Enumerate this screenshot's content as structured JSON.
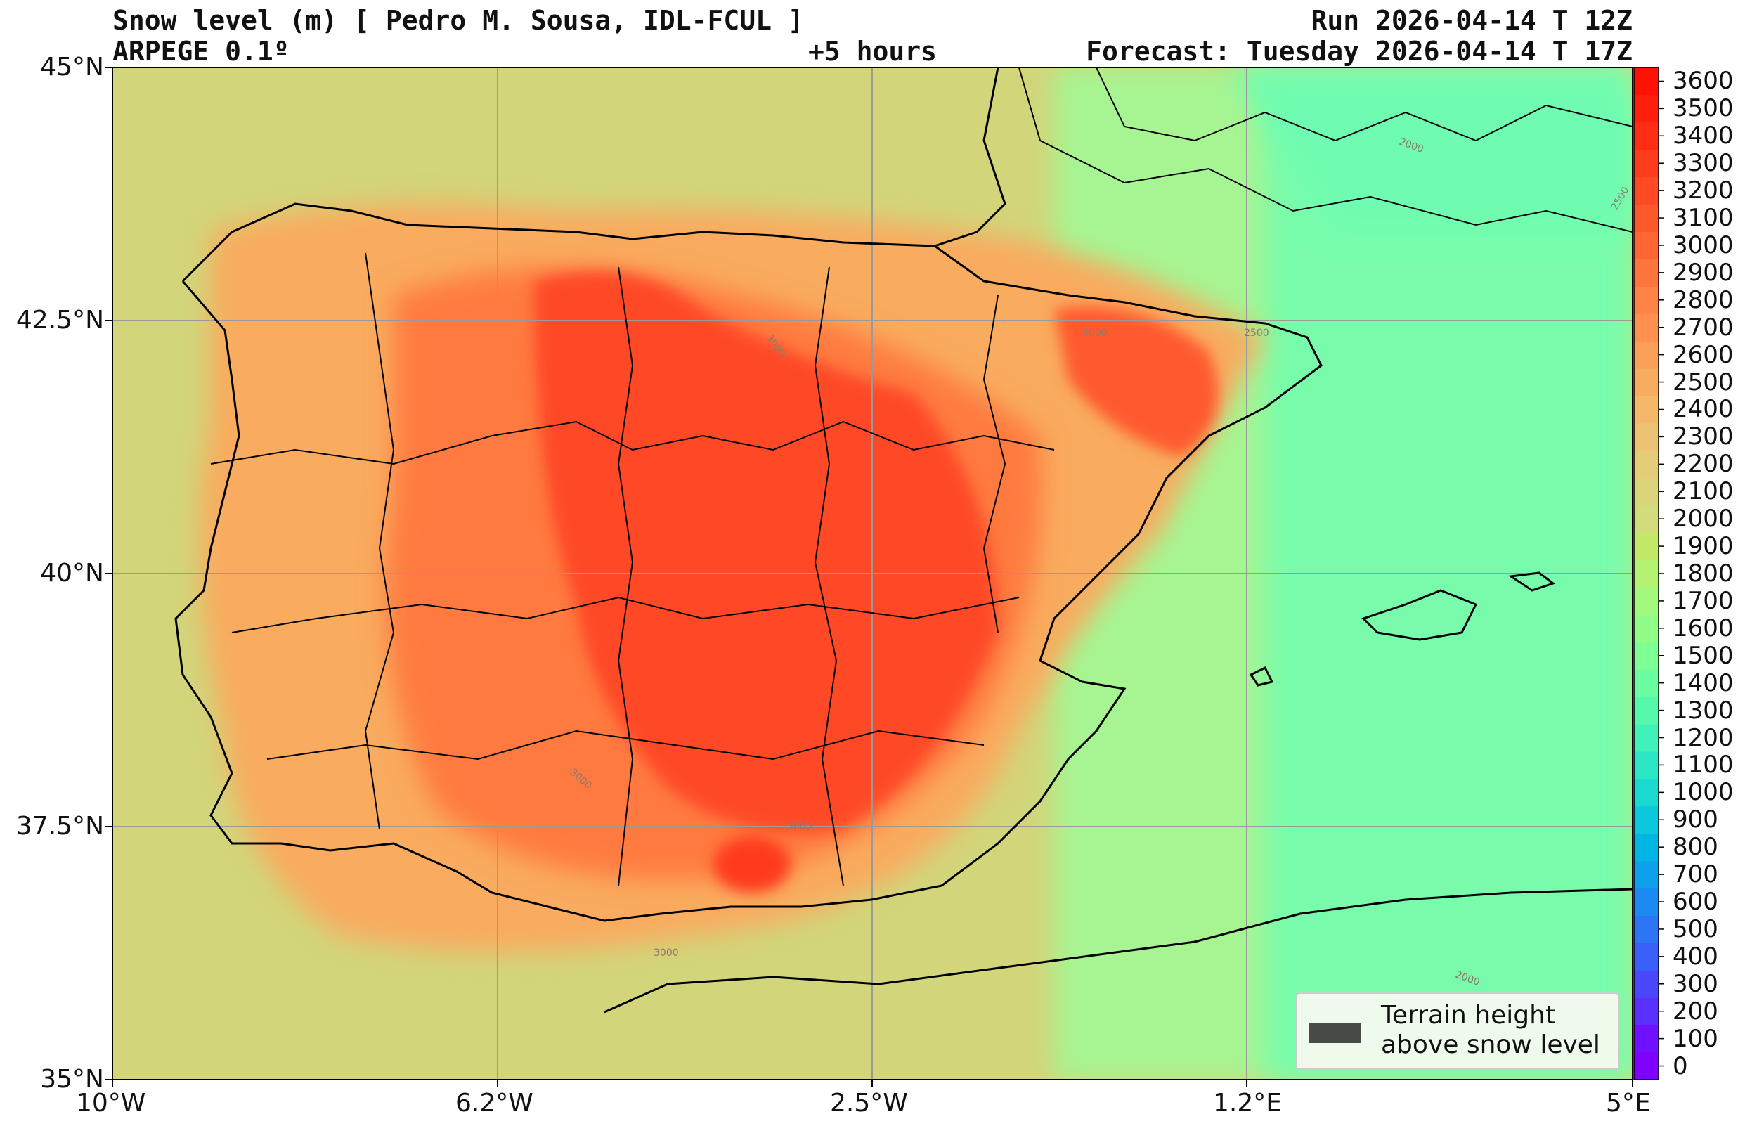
{
  "header": {
    "title": "Snow level (m) [ Pedro M. Sousa, IDL-FCUL ]",
    "model": "ARPEGE 0.1º",
    "lead_time": "+5 hours",
    "run": "Run 2026-04-14 T 12Z",
    "forecast": "Forecast: Tuesday 2026-04-14 T 17Z"
  },
  "axes": {
    "lat_labels": [
      "45°N",
      "42.5°N",
      "40°N",
      "37.5°N",
      "35°N"
    ],
    "lon_labels": [
      "10°W",
      "6.2°W",
      "2.5°W",
      "1.2°E",
      "5°E"
    ],
    "lat_range": [
      35,
      45
    ],
    "lon_range": [
      -10,
      5
    ],
    "grid": true
  },
  "colorbar": {
    "unit": "m",
    "levels": [
      0,
      100,
      200,
      300,
      400,
      500,
      600,
      700,
      800,
      900,
      1000,
      1100,
      1200,
      1300,
      1400,
      1500,
      1600,
      1700,
      1800,
      1900,
      2000,
      2100,
      2200,
      2300,
      2400,
      2500,
      2600,
      2700,
      2800,
      2900,
      3000,
      3100,
      3200,
      3300,
      3400,
      3500,
      3600
    ],
    "colors": [
      "#8000ff",
      "#7010ff",
      "#5a30ff",
      "#4a48fc",
      "#3a5ffa",
      "#2b75f6",
      "#1b8bf1",
      "#0ca1eb",
      "#00b5e3",
      "#0cc8dc",
      "#1ad9d1",
      "#2ce7c6",
      "#40f2b9",
      "#56f9ac",
      "#6afda0",
      "#7dff93",
      "#90fe86",
      "#a3f97c",
      "#b4f271",
      "#c4e867",
      "#d2dc7a",
      "#dbd57a",
      "#e4cd76",
      "#ecc372",
      "#f3b869",
      "#f8ac60",
      "#fc9f57",
      "#ff914e",
      "#ff8345",
      "#ff753c",
      "#ff6633",
      "#ff582b",
      "#ff4a23",
      "#ff3c1b",
      "#ff2e13",
      "#ff200b",
      "#ff1203"
    ]
  },
  "legend": {
    "line1": "Terrain height",
    "line2": "above snow level",
    "swatch_color": "#484a46"
  },
  "contour_labels": [
    "3000",
    "3000",
    "3000",
    "3000",
    "3000",
    "2500",
    "2500",
    "2000",
    "2000"
  ]
}
